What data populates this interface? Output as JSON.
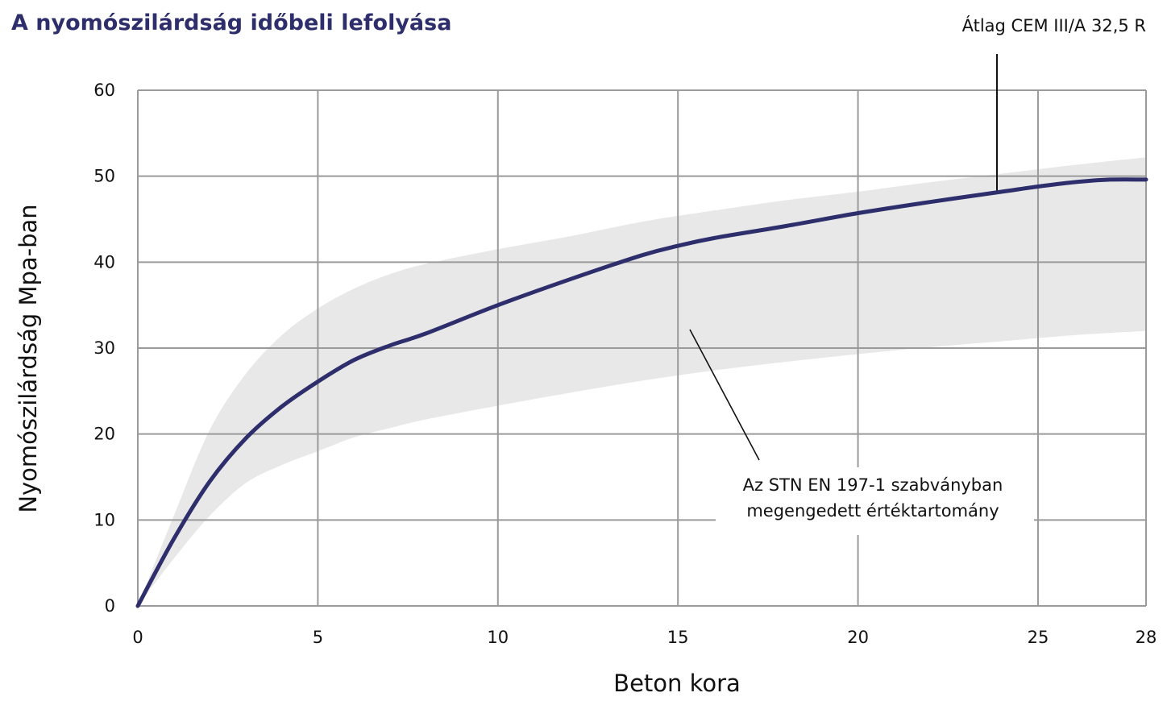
{
  "chart_data": {
    "type": "area",
    "title": "A nyomószilárdság időbeli lefolyása",
    "xlabel": "Beton kora",
    "ylabel": "Nyomószilárdság Mpa-ban",
    "xlim": [
      0,
      28
    ],
    "ylim": [
      0,
      60
    ],
    "x_ticks": [
      0,
      5,
      10,
      15,
      20,
      25,
      28
    ],
    "y_ticks": [
      0,
      10,
      20,
      30,
      40,
      50,
      60
    ],
    "grid": true,
    "series": [
      {
        "label": "Átlag CEM III/A 32,5 R",
        "type": "line",
        "color": "#2d2e6b",
        "x": [
          0,
          1,
          2,
          3,
          4,
          5,
          6,
          7,
          8,
          10,
          12,
          14,
          15,
          16,
          18,
          20,
          22,
          24,
          25,
          26,
          27,
          28
        ],
        "y": [
          0,
          7.8,
          14.5,
          19.5,
          23.2,
          26.1,
          28.6,
          30.3,
          31.7,
          35.0,
          38.0,
          40.8,
          41.9,
          42.8,
          44.2,
          45.7,
          47.0,
          48.2,
          48.8,
          49.3,
          49.6,
          49.6
        ]
      },
      {
        "label": "Az STN EN 197-1 szabványban megengedett értéktartomány",
        "type": "band",
        "color": "#e8e8e8",
        "x": [
          0,
          1,
          2,
          3,
          4,
          5,
          6,
          7,
          8,
          10,
          12,
          14,
          16,
          18,
          20,
          22,
          24,
          26,
          28
        ],
        "lower": [
          0,
          5.5,
          10.5,
          14.3,
          16.4,
          18.0,
          19.6,
          20.7,
          21.7,
          23.3,
          24.8,
          26.2,
          27.4,
          28.4,
          29.3,
          30.1,
          30.8,
          31.5,
          32.0
        ],
        "upper": [
          0,
          10.5,
          20.5,
          27.0,
          31.5,
          34.6,
          36.9,
          38.6,
          39.8,
          41.5,
          43.0,
          44.7,
          46.0,
          47.2,
          48.2,
          49.3,
          50.3,
          51.3,
          52.2
        ]
      }
    ],
    "annotations": [
      {
        "text": "Átlag CEM III/A 32,5 R",
        "target": "mean-line"
      },
      {
        "lines": [
          "Az STN EN 197-1 szabványban",
          "megengedett értéktartomány"
        ],
        "target": "band"
      }
    ]
  }
}
